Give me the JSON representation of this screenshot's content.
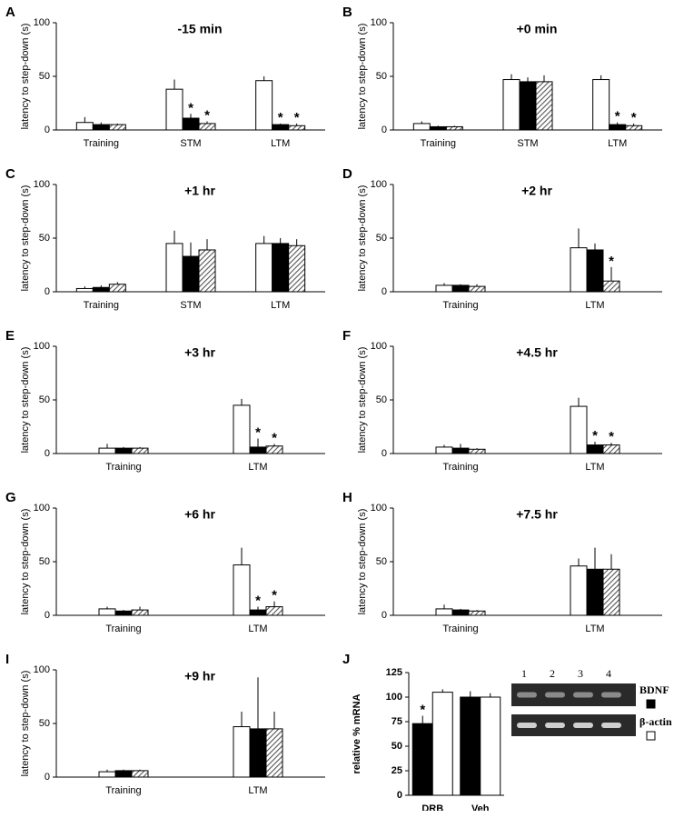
{
  "chart_data": [
    {
      "type": "bar",
      "panel": "A",
      "title": "-15 min",
      "y_label": "latency to step-down (s)",
      "categories": [
        "Training",
        "STM",
        "LTM"
      ],
      "ylim": [
        0,
        100
      ],
      "yticks": [
        0,
        50,
        100
      ],
      "series": [
        {
          "color": "#ffffff",
          "values": [
            7,
            38,
            46
          ],
          "errors": [
            5,
            9,
            4
          ],
          "significance": [
            null,
            null,
            null
          ]
        },
        {
          "color": "#000000",
          "values": [
            5,
            11,
            5
          ],
          "errors": [
            2,
            4,
            1
          ],
          "significance": [
            null,
            "*",
            "*"
          ]
        },
        {
          "color": "#555555",
          "hatch": true,
          "values": [
            5,
            6,
            4
          ],
          "errors": [
            1,
            2,
            2
          ],
          "significance": [
            null,
            "*",
            "*"
          ]
        }
      ]
    },
    {
      "type": "bar",
      "panel": "B",
      "title": "+0 min",
      "y_label": "latency to step-down (s)",
      "categories": [
        "Training",
        "STM",
        "LTM"
      ],
      "ylim": [
        0,
        100
      ],
      "yticks": [
        0,
        50,
        100
      ],
      "series": [
        {
          "color": "#ffffff",
          "values": [
            6,
            47,
            47
          ],
          "errors": [
            2,
            5,
            4
          ],
          "significance": [
            null,
            null,
            null
          ]
        },
        {
          "color": "#000000",
          "values": [
            3,
            45,
            5
          ],
          "errors": [
            1,
            4,
            2
          ],
          "significance": [
            null,
            null,
            "*"
          ]
        },
        {
          "color": "#555555",
          "hatch": true,
          "values": [
            3,
            45,
            4
          ],
          "errors": [
            1,
            6,
            2
          ],
          "significance": [
            null,
            null,
            "*"
          ]
        }
      ]
    },
    {
      "type": "bar",
      "panel": "C",
      "title": "+1 hr",
      "y_label": "latency to step-down (s)",
      "categories": [
        "Training",
        "STM",
        "LTM"
      ],
      "ylim": [
        0,
        100
      ],
      "yticks": [
        0,
        50,
        100
      ],
      "series": [
        {
          "color": "#ffffff",
          "values": [
            3,
            45,
            45
          ],
          "errors": [
            2,
            12,
            7
          ],
          "significance": [
            null,
            null,
            null
          ]
        },
        {
          "color": "#000000",
          "values": [
            4,
            33,
            45
          ],
          "errors": [
            2,
            13,
            5
          ],
          "significance": [
            null,
            null,
            null
          ]
        },
        {
          "color": "#555555",
          "hatch": true,
          "values": [
            7,
            39,
            43
          ],
          "errors": [
            2,
            10,
            6
          ],
          "significance": [
            null,
            null,
            null
          ]
        }
      ]
    },
    {
      "type": "bar",
      "panel": "D",
      "title": "+2 hr",
      "y_label": "latency to step-down (s)",
      "categories": [
        "Training",
        "LTM"
      ],
      "ylim": [
        0,
        100
      ],
      "yticks": [
        0,
        50,
        100
      ],
      "series": [
        {
          "color": "#ffffff",
          "values": [
            6,
            41
          ],
          "errors": [
            2,
            18
          ],
          "significance": [
            null,
            null
          ]
        },
        {
          "color": "#000000",
          "values": [
            6,
            39
          ],
          "errors": [
            1,
            6
          ],
          "significance": [
            null,
            null
          ]
        },
        {
          "color": "#555555",
          "hatch": true,
          "values": [
            5,
            10
          ],
          "errors": [
            2,
            13
          ],
          "significance": [
            null,
            "*"
          ]
        }
      ]
    },
    {
      "type": "bar",
      "panel": "E",
      "title": "+3 hr",
      "y_label": "latency to step-down (s)",
      "categories": [
        "Training",
        "LTM"
      ],
      "ylim": [
        0,
        100
      ],
      "yticks": [
        0,
        50,
        100
      ],
      "series": [
        {
          "color": "#ffffff",
          "values": [
            5,
            45
          ],
          "errors": [
            4,
            6
          ],
          "significance": [
            null,
            null
          ]
        },
        {
          "color": "#000000",
          "values": [
            5,
            6
          ],
          "errors": [
            1,
            8
          ],
          "significance": [
            null,
            "*"
          ]
        },
        {
          "color": "#555555",
          "hatch": true,
          "values": [
            5,
            7
          ],
          "errors": [
            1,
            2
          ],
          "significance": [
            null,
            "*"
          ]
        }
      ]
    },
    {
      "type": "bar",
      "panel": "F",
      "title": "+4.5 hr",
      "y_label": "latency to step-down (s)",
      "categories": [
        "Training",
        "LTM"
      ],
      "ylim": [
        0,
        100
      ],
      "yticks": [
        0,
        50,
        100
      ],
      "series": [
        {
          "color": "#ffffff",
          "values": [
            6,
            44
          ],
          "errors": [
            2,
            8
          ],
          "significance": [
            null,
            null
          ]
        },
        {
          "color": "#000000",
          "values": [
            5,
            8
          ],
          "errors": [
            4,
            3
          ],
          "significance": [
            null,
            "*"
          ]
        },
        {
          "color": "#555555",
          "hatch": true,
          "values": [
            4,
            8
          ],
          "errors": [
            1,
            2
          ],
          "significance": [
            null,
            "*"
          ]
        }
      ]
    },
    {
      "type": "bar",
      "panel": "G",
      "title": "+6 hr",
      "y_label": "latency to step-down (s)",
      "categories": [
        "Training",
        "LTM"
      ],
      "ylim": [
        0,
        100
      ],
      "yticks": [
        0,
        50,
        100
      ],
      "series": [
        {
          "color": "#ffffff",
          "values": [
            6,
            47
          ],
          "errors": [
            2,
            16
          ],
          "significance": [
            null,
            null
          ]
        },
        {
          "color": "#000000",
          "values": [
            4,
            5
          ],
          "errors": [
            1,
            3
          ],
          "significance": [
            null,
            "*"
          ]
        },
        {
          "color": "#555555",
          "hatch": true,
          "values": [
            5,
            8
          ],
          "errors": [
            3,
            5
          ],
          "significance": [
            null,
            "*"
          ]
        }
      ]
    },
    {
      "type": "bar",
      "panel": "H",
      "title": "+7.5 hr",
      "y_label": "latency to step-down (s)",
      "categories": [
        "Training",
        "LTM"
      ],
      "ylim": [
        0,
        100
      ],
      "yticks": [
        0,
        50,
        100
      ],
      "series": [
        {
          "color": "#ffffff",
          "values": [
            6,
            46
          ],
          "errors": [
            4,
            7
          ],
          "significance": [
            null,
            null
          ]
        },
        {
          "color": "#000000",
          "values": [
            5,
            43
          ],
          "errors": [
            1,
            20
          ],
          "significance": [
            null,
            null
          ]
        },
        {
          "color": "#555555",
          "hatch": true,
          "values": [
            4,
            43
          ],
          "errors": [
            1,
            14
          ],
          "significance": [
            null,
            null
          ]
        }
      ]
    },
    {
      "type": "bar",
      "panel": "I",
      "title": "+9 hr",
      "y_label": "latency to step-down (s)",
      "categories": [
        "Training",
        "LTM"
      ],
      "ylim": [
        0,
        100
      ],
      "yticks": [
        0,
        50,
        100
      ],
      "series": [
        {
          "color": "#ffffff",
          "values": [
            5,
            47
          ],
          "errors": [
            2,
            14
          ],
          "significance": [
            null,
            null
          ]
        },
        {
          "color": "#000000",
          "values": [
            6,
            45
          ],
          "errors": [
            1,
            48
          ],
          "significance": [
            null,
            null
          ]
        },
        {
          "color": "#555555",
          "hatch": true,
          "values": [
            6,
            45
          ],
          "errors": [
            1,
            16
          ],
          "significance": [
            null,
            null
          ]
        }
      ]
    },
    {
      "type": "bar",
      "panel": "J",
      "y_label": "relative % mRNA",
      "categories": [
        "DRB",
        "Veh"
      ],
      "ylim": [
        0,
        125
      ],
      "yticks": [
        0,
        25,
        50,
        75,
        100,
        125
      ],
      "series": [
        {
          "name": "BDNF",
          "color": "#000000",
          "values": [
            73,
            100
          ],
          "errors": [
            8,
            6
          ],
          "significance": [
            "*",
            null
          ]
        },
        {
          "name": "β-actin",
          "color": "#ffffff",
          "values": [
            105,
            100
          ],
          "errors": [
            3,
            4
          ],
          "significance": [
            null,
            null
          ]
        }
      ],
      "gel_lanes": [
        "1",
        "2",
        "3",
        "4"
      ]
    }
  ]
}
